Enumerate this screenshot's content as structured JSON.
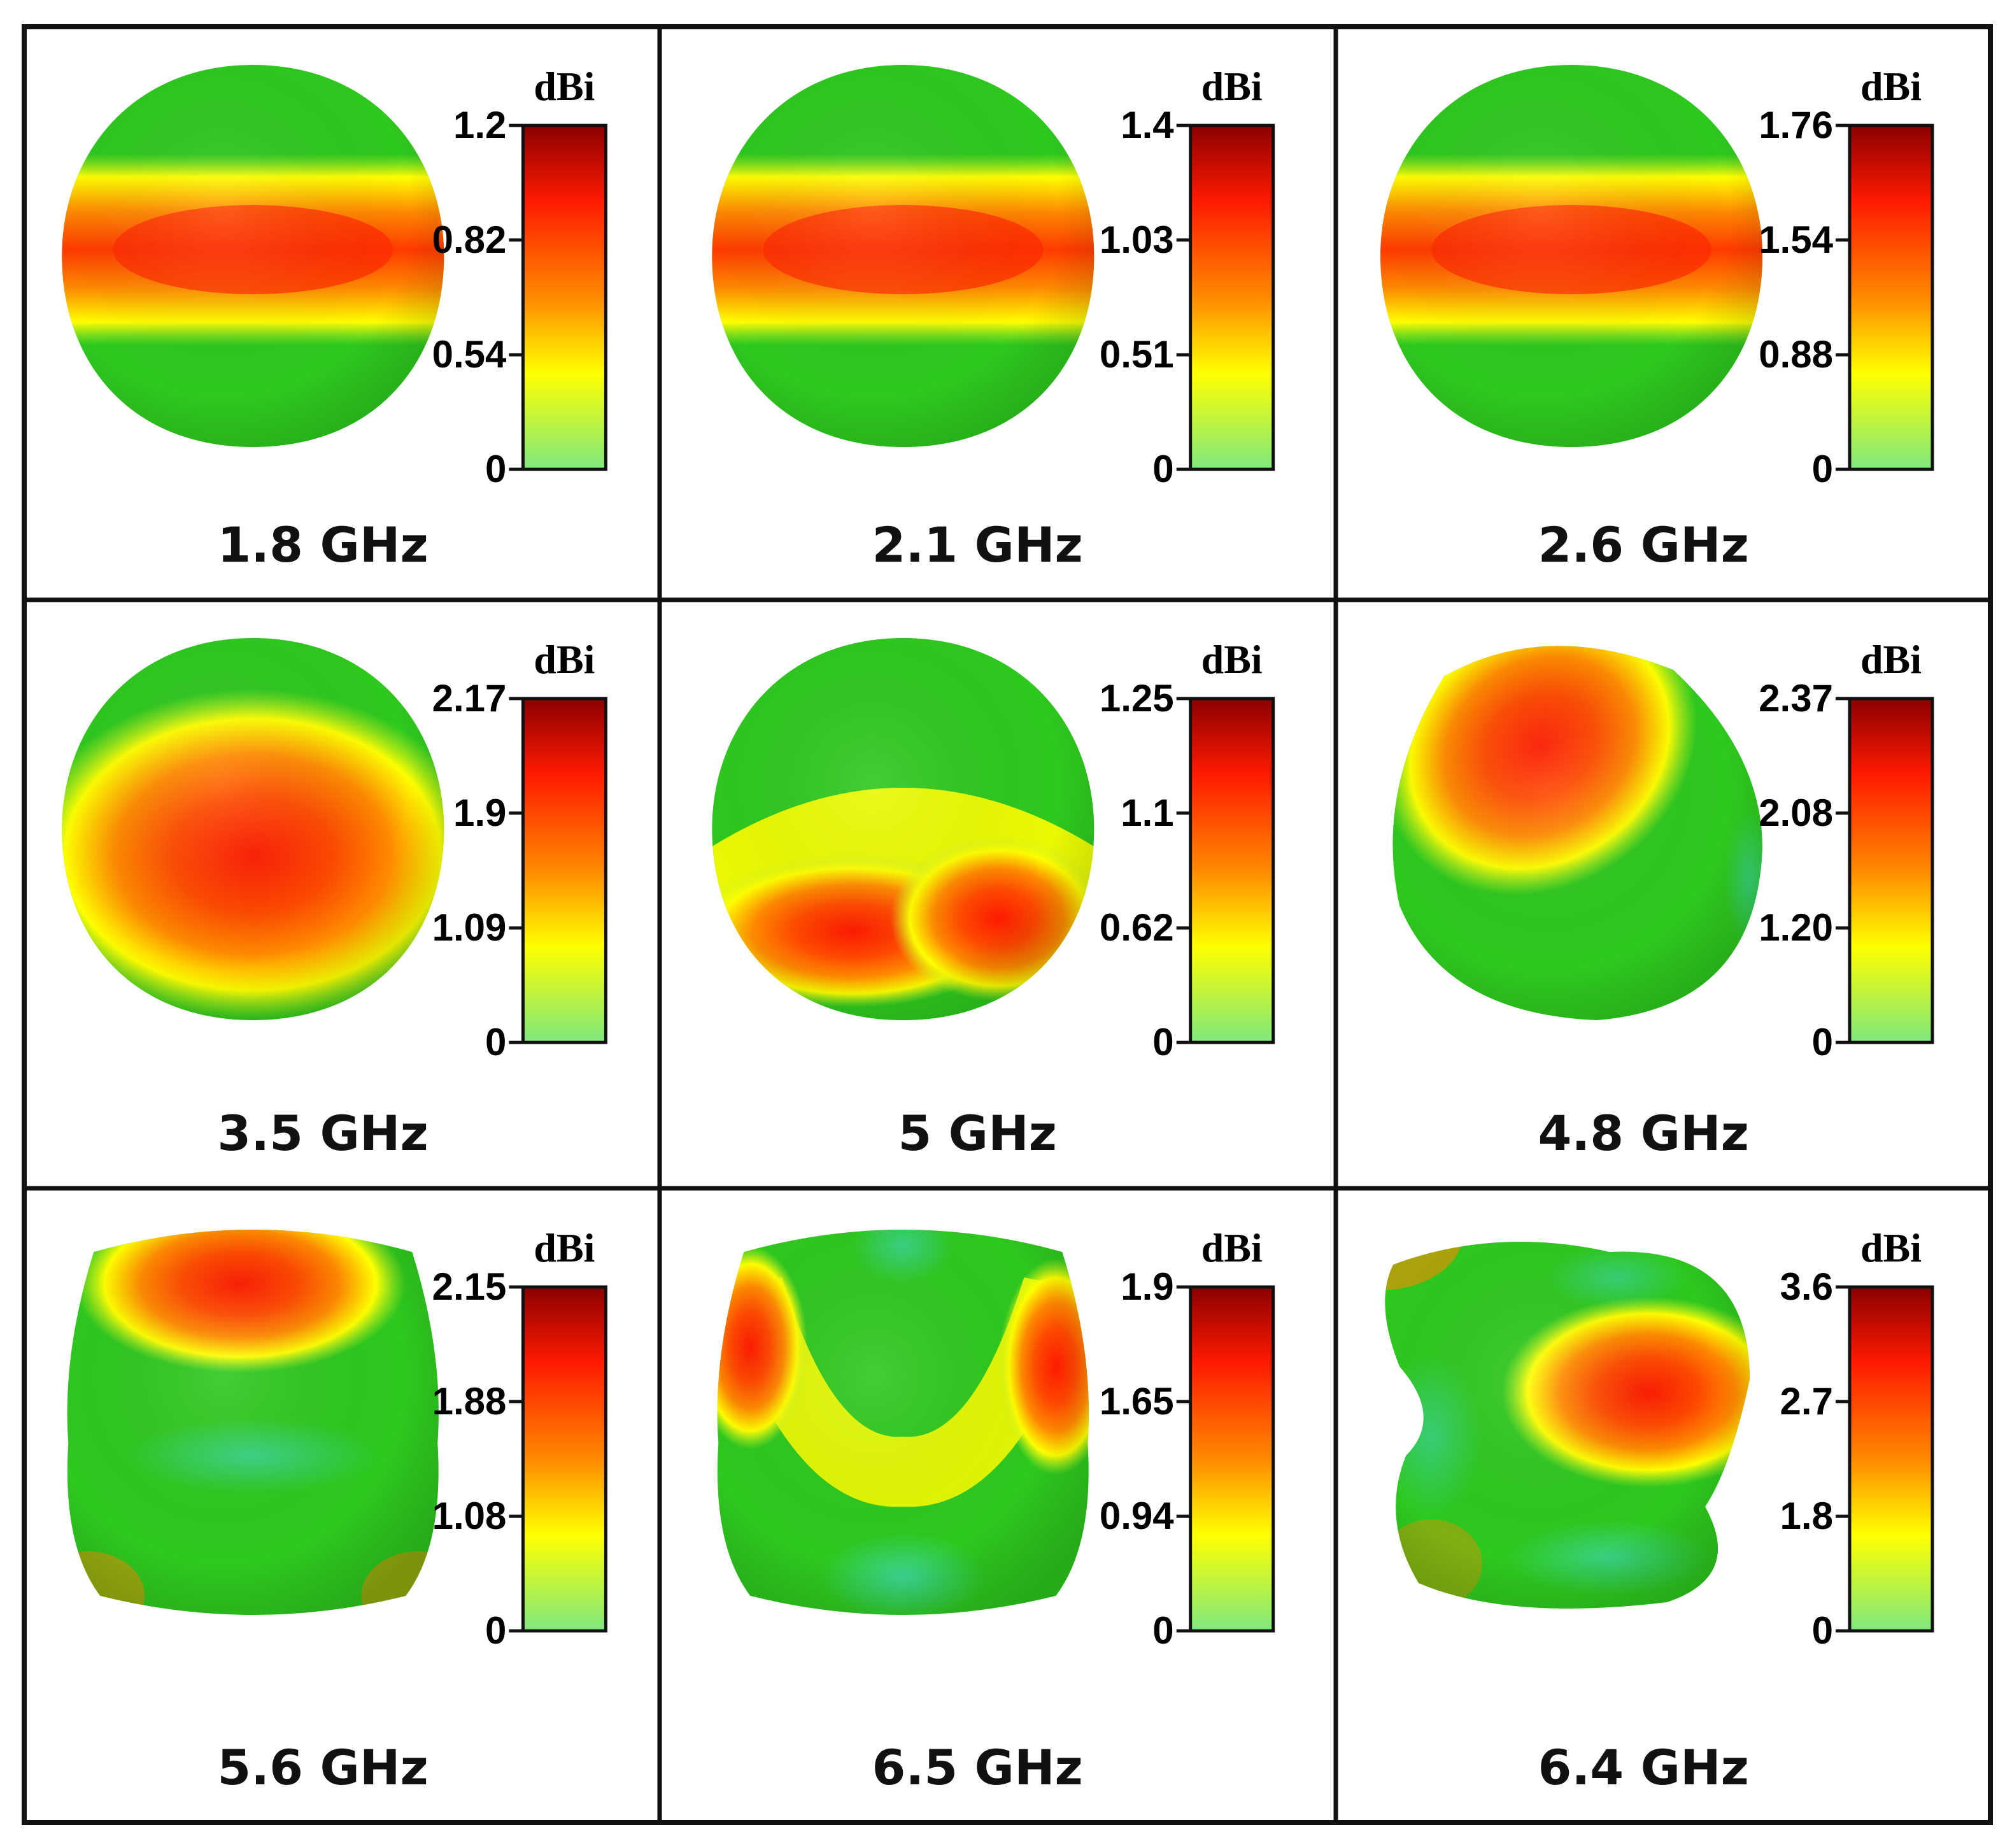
{
  "figure": {
    "unit_label": "dBi",
    "colors": {
      "border": "#111111",
      "pattern_base": "#2ec81e",
      "pattern_low": "#3fd6b0",
      "scale_top": "#8b0000",
      "scale_red": "#ff1a00",
      "scale_orange": "#ff8a00",
      "scale_yellow": "#ffff00",
      "scale_bottom": "#7ee87e"
    },
    "panels": [
      {
        "frequency": "1.8 GHz",
        "pattern": "band",
        "scale_ticks": [
          {
            "label": "1.2",
            "value": 1.0
          },
          {
            "label": "0.82",
            "value": 0.667
          },
          {
            "label": "0.54",
            "value": 0.333
          },
          {
            "label": "0",
            "value": 0.0
          }
        ]
      },
      {
        "frequency": "2.1 GHz",
        "pattern": "band",
        "scale_ticks": [
          {
            "label": "1.4",
            "value": 1.0
          },
          {
            "label": "1.03",
            "value": 0.667
          },
          {
            "label": "0.51",
            "value": 0.333
          },
          {
            "label": "0",
            "value": 0.0
          }
        ]
      },
      {
        "frequency": "2.6 GHz",
        "pattern": "band",
        "scale_ticks": [
          {
            "label": "1.76",
            "value": 1.0
          },
          {
            "label": "1.54",
            "value": 0.667
          },
          {
            "label": "0.88",
            "value": 0.333
          },
          {
            "label": "0",
            "value": 0.0
          }
        ]
      },
      {
        "frequency": "3.5 GHz",
        "pattern": "center",
        "scale_ticks": [
          {
            "label": "2.17",
            "value": 1.0
          },
          {
            "label": "1.9",
            "value": 0.667
          },
          {
            "label": "1.09",
            "value": 0.333
          },
          {
            "label": "0",
            "value": 0.0
          }
        ]
      },
      {
        "frequency": "5 GHz",
        "pattern": "lower-arc",
        "scale_ticks": [
          {
            "label": "1.25",
            "value": 1.0
          },
          {
            "label": "1.1",
            "value": 0.667
          },
          {
            "label": "0.62",
            "value": 0.333
          },
          {
            "label": "0",
            "value": 0.0
          }
        ]
      },
      {
        "frequency": "4.8 GHz",
        "pattern": "upper-left-lobe",
        "scale_ticks": [
          {
            "label": "2.37",
            "value": 1.0
          },
          {
            "label": "2.08",
            "value": 0.667
          },
          {
            "label": "1.20",
            "value": 0.333
          },
          {
            "label": "0",
            "value": 0.0
          }
        ]
      },
      {
        "frequency": "5.6 GHz",
        "pattern": "top-lobe",
        "scale_ticks": [
          {
            "label": "2.15",
            "value": 1.0
          },
          {
            "label": "1.88",
            "value": 0.667
          },
          {
            "label": "1.08",
            "value": 0.333
          },
          {
            "label": "0",
            "value": 0.0
          }
        ]
      },
      {
        "frequency": "6.5 GHz",
        "pattern": "u-shape",
        "scale_ticks": [
          {
            "label": "1.9",
            "value": 1.0
          },
          {
            "label": "1.65",
            "value": 0.667
          },
          {
            "label": "0.94",
            "value": 0.333
          },
          {
            "label": "0",
            "value": 0.0
          }
        ]
      },
      {
        "frequency": "6.4 GHz",
        "pattern": "right-lobe",
        "scale_ticks": [
          {
            "label": "3.6",
            "value": 1.0
          },
          {
            "label": "2.7",
            "value": 0.667
          },
          {
            "label": "1.8",
            "value": 0.333
          },
          {
            "label": "0",
            "value": 0.0
          }
        ]
      }
    ]
  }
}
